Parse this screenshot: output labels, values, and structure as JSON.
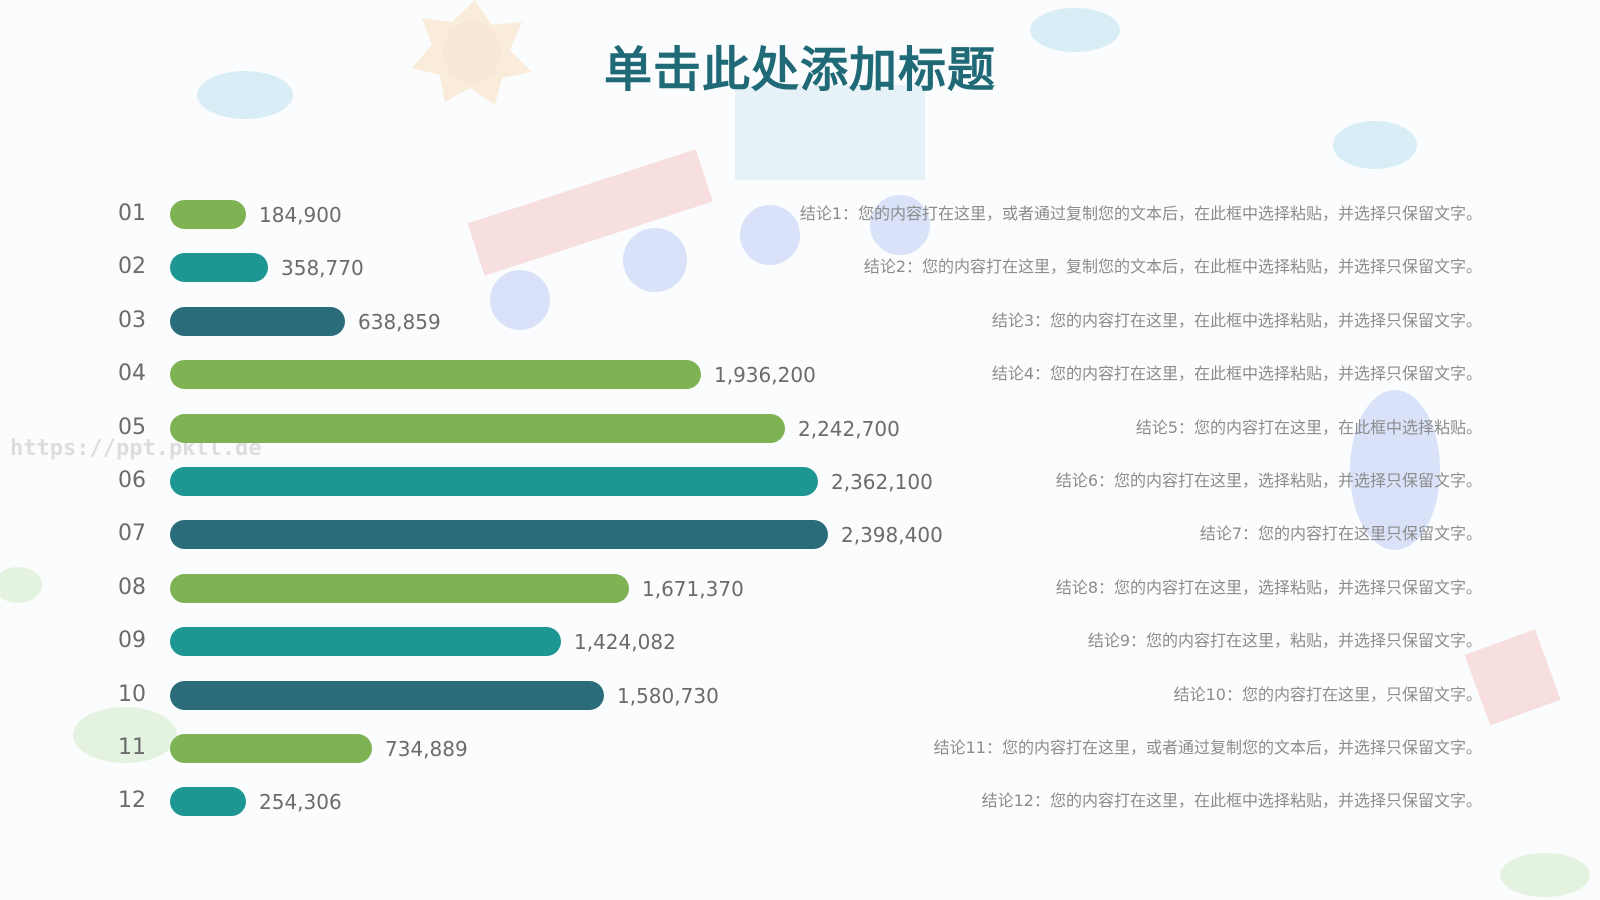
{
  "title": "单击此处添加标题",
  "watermark": "https://ppt.pkll.de",
  "colors": {
    "title": "#1f6a76",
    "green": "#7db352",
    "teal": "#1e9794",
    "dark_teal": "#2a6c7a"
  },
  "chart_data": {
    "type": "bar",
    "orientation": "horizontal",
    "categories": [
      "01",
      "02",
      "03",
      "04",
      "05",
      "06",
      "07",
      "08",
      "09",
      "10",
      "11",
      "12"
    ],
    "values": [
      184900,
      358770,
      638859,
      1936200,
      2242700,
      2362100,
      2398400,
      1671370,
      1424082,
      1580730,
      734889,
      254306
    ],
    "value_labels": [
      "184,900",
      "358,770",
      "638,859",
      "1,936,200",
      "2,242,700",
      "2,362,100",
      "2,398,400",
      "1,671,370",
      "1,424,082",
      "1,580,730",
      "734,889",
      "254,306"
    ],
    "bar_colors": [
      "#7db352",
      "#1e9794",
      "#2a6c7a",
      "#7db352",
      "#7db352",
      "#1e9794",
      "#2a6c7a",
      "#7db352",
      "#1e9794",
      "#2a6c7a",
      "#7db352",
      "#1e9794"
    ],
    "annotations": [
      "结论1：您的内容打在这里，或者通过复制您的文本后，在此框中选择粘贴，并选择只保留文字。",
      "结论2：您的内容打在这里，复制您的文本后，在此框中选择粘贴，并选择只保留文字。",
      "结论3：您的内容打在这里，在此框中选择粘贴，并选择只保留文字。",
      "结论4：您的内容打在这里，在此框中选择粘贴，并选择只保留文字。",
      "结论5：您的内容打在这里，在此框中选择粘贴。",
      "结论6：您的内容打在这里，选择粘贴，并选择只保留文字。",
      "结论7：您的内容打在这里只保留文字。",
      "结论8：您的内容打在这里，选择粘贴，并选择只保留文字。",
      "结论9：您的内容打在这里，粘贴，并选择只保留文字。",
      "结论10：您的内容打在这里，只保留文字。",
      "结论11：您的内容打在这里，或者通过复制您的文本后，并选择只保留文字。",
      "结论12：您的内容打在这里，在此框中选择粘贴，并选择只保留文字。"
    ],
    "xlim": [
      0,
      2398400
    ],
    "grid": false,
    "legend": "none"
  }
}
